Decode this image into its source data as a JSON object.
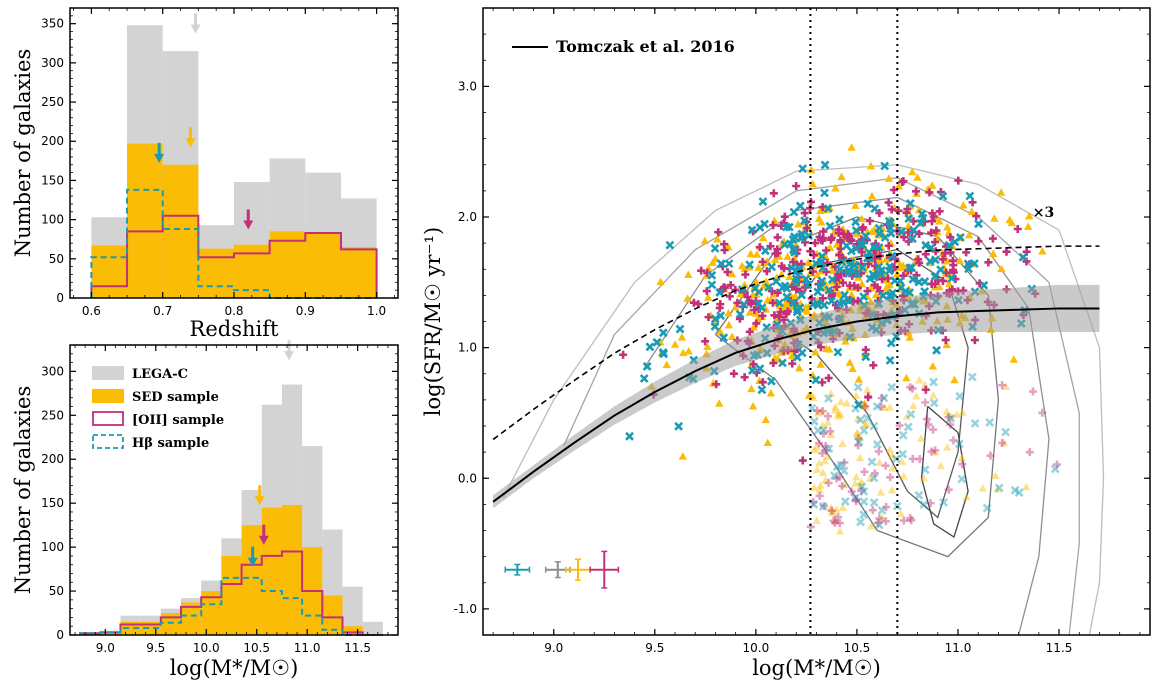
{
  "colors": {
    "legac": "#d3d3d3",
    "sed": "#fbbc05",
    "oii": "#c2307a",
    "hb": "#1a9bb5",
    "err_gray": "#8c8c8c"
  },
  "chart_data": [
    {
      "id": "redshift-histogram",
      "type": "histogram",
      "xlabel": "Redshift",
      "ylabel": "Number of galaxies",
      "xlim": [
        0.57,
        1.03
      ],
      "ylim": [
        0,
        370
      ],
      "xticks": [
        0.6,
        0.7,
        0.8,
        0.9,
        1.0
      ],
      "xtick_labels": [
        "0.6",
        "0.7",
        "0.8",
        "0.9",
        "1.0"
      ],
      "yticks": [
        0,
        50,
        100,
        150,
        200,
        250,
        300,
        350
      ],
      "ytick_labels": [
        "0",
        "50",
        "100",
        "150",
        "200",
        "250",
        "300",
        "350"
      ],
      "bin_edges": [
        0.6,
        0.65,
        0.7,
        0.75,
        0.8,
        0.85,
        0.9,
        0.95,
        1.0
      ],
      "series": [
        {
          "name": "LEGA-C",
          "style": "filled",
          "color_key": "legac",
          "values": [
            103,
            348,
            315,
            93,
            148,
            178,
            160,
            127
          ]
        },
        {
          "name": "SED sample",
          "style": "filled",
          "color_key": "sed",
          "values": [
            67,
            197,
            170,
            63,
            68,
            85,
            83,
            65
          ]
        },
        {
          "name": "[OII] sample",
          "style": "step",
          "color_key": "oii",
          "values": [
            15,
            85,
            105,
            52,
            57,
            73,
            83,
            62
          ]
        },
        {
          "name": "Hβ sample",
          "style": "dashed-step",
          "color_key": "hb",
          "values": [
            52,
            138,
            88,
            15,
            10,
            0,
            0,
            0
          ]
        }
      ],
      "arrows": [
        {
          "x": 0.746,
          "y": 340,
          "color_key": "legac"
        },
        {
          "x": 0.739,
          "y": 195,
          "color_key": "sed"
        },
        {
          "x": 0.695,
          "y": 175,
          "color_key": "hb"
        },
        {
          "x": 0.82,
          "y": 90,
          "color_key": "oii"
        }
      ]
    },
    {
      "id": "mass-histogram",
      "type": "histogram",
      "xlabel": "log(M*/M☉)",
      "ylabel": "Number of galaxies",
      "xlim": [
        8.65,
        11.9
      ],
      "ylim": [
        0,
        330
      ],
      "xticks": [
        9.0,
        9.5,
        10.0,
        10.5,
        11.0,
        11.5
      ],
      "xtick_labels": [
        "9.0",
        "9.5",
        "10.0",
        "10.5",
        "11.0",
        "11.5"
      ],
      "yticks": [
        0,
        50,
        100,
        150,
        200,
        250,
        300
      ],
      "ytick_labels": [
        "0",
        "50",
        "100",
        "150",
        "200",
        "250",
        "300"
      ],
      "bin_edges": [
        8.75,
        8.95,
        9.15,
        9.35,
        9.55,
        9.75,
        9.95,
        10.15,
        10.35,
        10.55,
        10.75,
        10.95,
        11.15,
        11.35,
        11.55,
        11.75
      ],
      "series": [
        {
          "name": "LEGA-C",
          "style": "filled",
          "color_key": "legac",
          "values": [
            3,
            5,
            22,
            22,
            30,
            42,
            62,
            110,
            165,
            262,
            285,
            215,
            120,
            55,
            15
          ]
        },
        {
          "name": "SED sample",
          "style": "filled",
          "color_key": "sed",
          "values": [
            2,
            3,
            15,
            15,
            25,
            37,
            50,
            90,
            125,
            145,
            148,
            100,
            45,
            10,
            0
          ]
        },
        {
          "name": "[OII] sample",
          "style": "step",
          "color_key": "oii",
          "values": [
            2,
            3,
            12,
            12,
            20,
            32,
            43,
            58,
            80,
            90,
            95,
            50,
            20,
            3,
            0
          ]
        },
        {
          "name": "Hβ sample",
          "style": "dashed-step",
          "color_key": "hb",
          "values": [
            2,
            3,
            8,
            8,
            14,
            22,
            35,
            65,
            65,
            50,
            42,
            22,
            6,
            0,
            0
          ]
        }
      ],
      "arrows": [
        {
          "x": 10.82,
          "y": 315,
          "color_key": "legac"
        },
        {
          "x": 10.53,
          "y": 150,
          "color_key": "sed"
        },
        {
          "x": 10.57,
          "y": 105,
          "color_key": "oii"
        },
        {
          "x": 10.46,
          "y": 80,
          "color_key": "hb"
        }
      ]
    },
    {
      "id": "sfr-mass-scatter",
      "type": "scatter",
      "xlabel": "log(M*/M☉)",
      "ylabel": "log(SFR/M☉ yr⁻¹)",
      "xlim": [
        8.65,
        11.95
      ],
      "ylim": [
        -1.2,
        3.6
      ],
      "xticks": [
        9.0,
        9.5,
        10.0,
        10.5,
        11.0,
        11.5
      ],
      "xtick_labels": [
        "9.0",
        "9.5",
        "10.0",
        "10.5",
        "11.0",
        "11.5"
      ],
      "yticks": [
        -1.0,
        0.0,
        1.0,
        2.0,
        3.0
      ],
      "ytick_labels": [
        "-1.0",
        "0.0",
        "1.0",
        "2.0",
        "3.0"
      ],
      "vlines": [
        10.27,
        10.7
      ],
      "main_sequence": {
        "name": "Tomczak et al. 2016",
        "x": [
          8.7,
          8.9,
          9.1,
          9.3,
          9.5,
          9.7,
          9.9,
          10.1,
          10.3,
          10.5,
          10.7,
          10.9,
          11.1,
          11.3,
          11.5,
          11.7
        ],
        "y": [
          -0.18,
          0.05,
          0.27,
          0.48,
          0.66,
          0.82,
          0.96,
          1.06,
          1.14,
          1.2,
          1.24,
          1.27,
          1.28,
          1.29,
          1.3,
          1.3
        ],
        "band_halfwidth": [
          0.05,
          0.05,
          0.06,
          0.07,
          0.08,
          0.09,
          0.1,
          0.11,
          0.12,
          0.13,
          0.14,
          0.15,
          0.16,
          0.17,
          0.18,
          0.18
        ]
      },
      "times3_label": "×3",
      "times3_offset": 0.477,
      "contours": [
        {
          "level": 1,
          "color": "#bdbdbd",
          "points": [
            [
              8.75,
              -0.15
            ],
            [
              9.0,
              0.6
            ],
            [
              9.4,
              1.5
            ],
            [
              9.8,
              2.05
            ],
            [
              10.2,
              2.35
            ],
            [
              10.7,
              2.4
            ],
            [
              11.1,
              2.25
            ],
            [
              11.5,
              1.9
            ],
            [
              11.7,
              1.0
            ],
            [
              11.72,
              0.0
            ],
            [
              11.7,
              -0.8
            ],
            [
              11.65,
              -1.2
            ]
          ]
        },
        {
          "level": 2,
          "color": "#a3a3a3",
          "points": [
            [
              9.05,
              0.25
            ],
            [
              9.3,
              1.1
            ],
            [
              9.7,
              1.75
            ],
            [
              10.2,
              2.2
            ],
            [
              10.7,
              2.3
            ],
            [
              11.1,
              2.0
            ],
            [
              11.45,
              1.5
            ],
            [
              11.6,
              0.5
            ],
            [
              11.6,
              -0.5
            ],
            [
              11.55,
              -1.2
            ]
          ]
        },
        {
          "level": 3,
          "color": "#8f8f8f",
          "points": [
            [
              9.45,
              0.85
            ],
            [
              9.75,
              1.55
            ],
            [
              10.2,
              2.05
            ],
            [
              10.7,
              2.15
            ],
            [
              11.1,
              1.85
            ],
            [
              11.35,
              1.3
            ],
            [
              11.45,
              0.3
            ],
            [
              11.4,
              -0.6
            ],
            [
              11.3,
              -1.2
            ]
          ]
        },
        {
          "level": 4,
          "color": "#777777",
          "points": [
            [
              9.8,
              1.1
            ],
            [
              10.1,
              1.75
            ],
            [
              10.5,
              2.0
            ],
            [
              10.9,
              1.85
            ],
            [
              11.15,
              1.4
            ],
            [
              11.2,
              0.6
            ],
            [
              11.15,
              -0.3
            ],
            [
              10.95,
              -0.6
            ],
            [
              10.6,
              -0.4
            ],
            [
              10.35,
              0.2
            ],
            [
              10.1,
              0.75
            ],
            [
              9.8,
              1.1
            ]
          ]
        },
        {
          "level": 5,
          "color": "#5d5d5d",
          "points": [
            [
              10.1,
              1.15
            ],
            [
              10.35,
              1.65
            ],
            [
              10.7,
              1.75
            ],
            [
              10.95,
              1.5
            ],
            [
              11.05,
              1.0
            ],
            [
              11.0,
              0.2
            ],
            [
              10.9,
              -0.3
            ],
            [
              10.75,
              -0.1
            ],
            [
              10.55,
              0.5
            ],
            [
              10.3,
              0.95
            ],
            [
              10.1,
              1.15
            ]
          ]
        },
        {
          "level": 6,
          "color": "#444444",
          "points": [
            [
              10.85,
              0.55
            ],
            [
              11.0,
              0.35
            ],
            [
              11.05,
              -0.1
            ],
            [
              10.98,
              -0.45
            ],
            [
              10.88,
              -0.35
            ],
            [
              10.82,
              0.0
            ],
            [
              10.85,
              0.55
            ]
          ]
        }
      ],
      "error_bars": [
        {
          "x": 8.82,
          "y": -0.7,
          "xerr": 0.06,
          "yerr": 0.04,
          "color_key": "hb"
        },
        {
          "x": 9.02,
          "y": -0.7,
          "xerr": 0.06,
          "yerr": 0.06,
          "color_key": "err_gray"
        },
        {
          "x": 9.12,
          "y": -0.7,
          "xerr": 0.06,
          "yerr": 0.08,
          "color_key": "sed"
        },
        {
          "x": 9.25,
          "y": -0.7,
          "xerr": 0.07,
          "yerr": 0.14,
          "color_key": "oii"
        }
      ]
    }
  ],
  "legend_left": {
    "items": [
      "LEGA-C",
      "SED sample",
      "[OII] sample",
      "Hβ sample"
    ]
  }
}
